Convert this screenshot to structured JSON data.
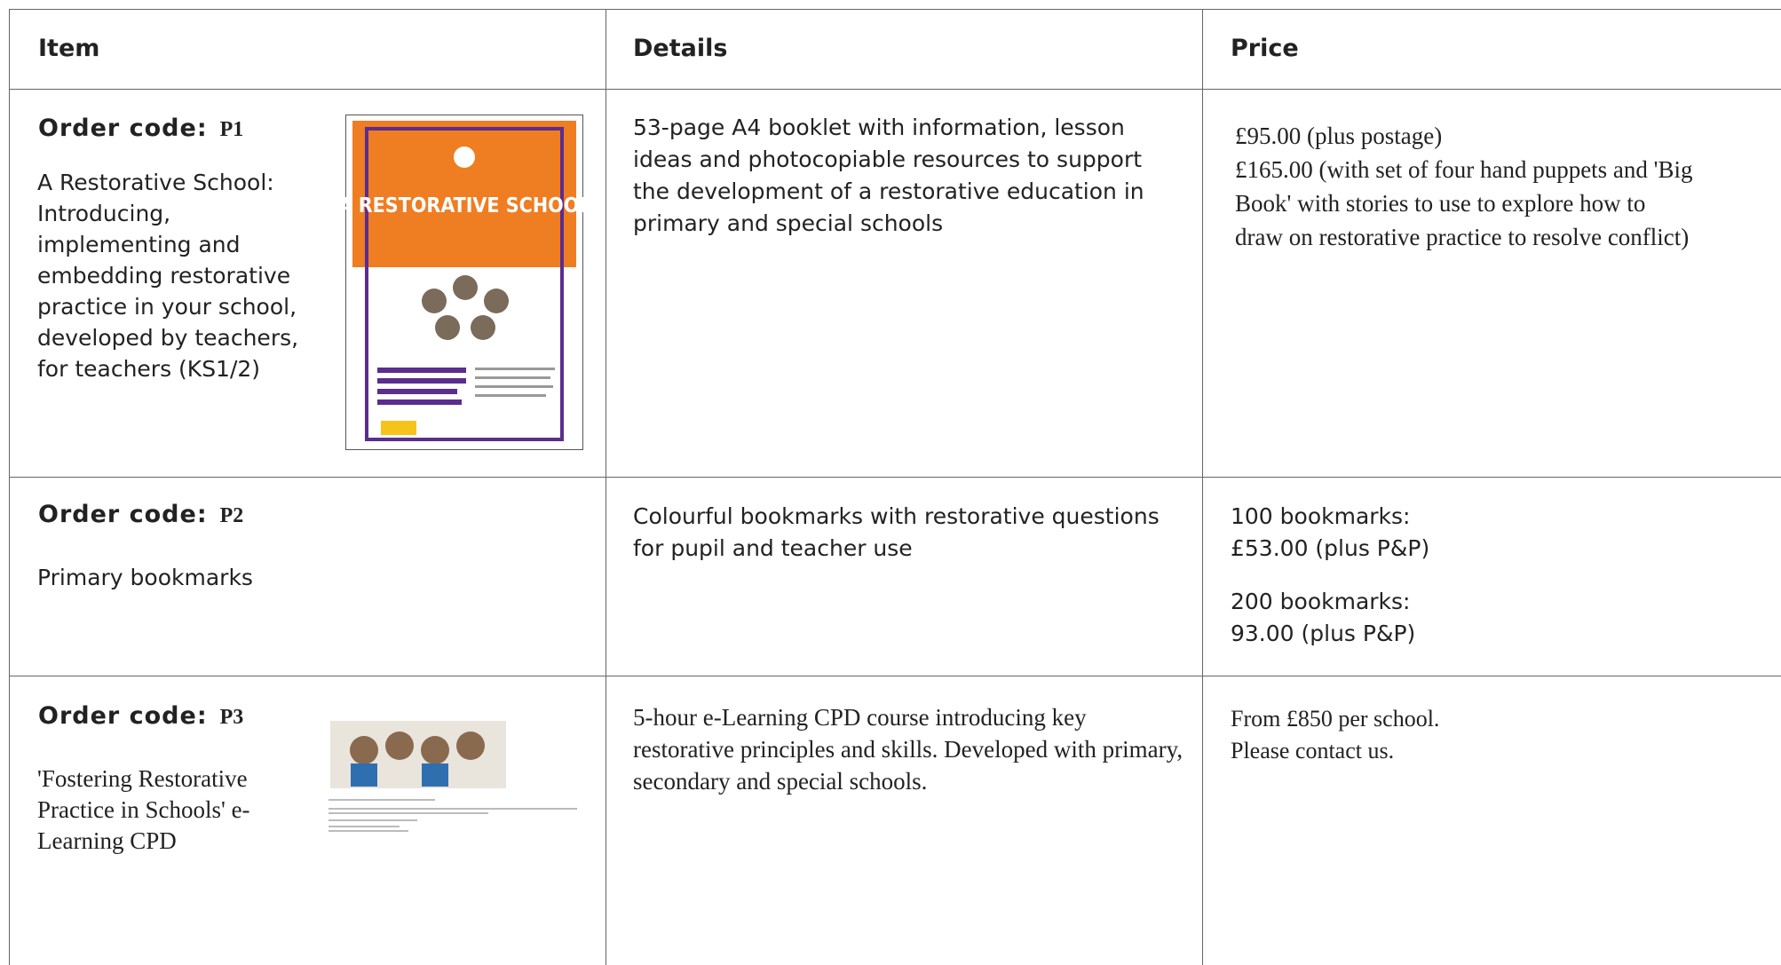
{
  "table": {
    "headers": [
      "Item",
      "Details",
      "Price"
    ],
    "rows": [
      {
        "order_label": "Order code:",
        "code": "P1",
        "item": "A Restorative School: Introducing, implementing and embedding restorative practice in your school, developed by teachers, for teachers (KS1/2)",
        "cover_title": "A RESTORATIVE SCHOOL",
        "details": "53-page A4 booklet with information, lesson ideas and photocopiable resources to support the development of a restorative education in primary and special schools",
        "price": [
          "£95.00 (plus postage)",
          "£165.00 (with set of four hand puppets and 'Big Book' with stories to use to explore how to draw on restorative practice to resolve conflict)"
        ]
      },
      {
        "order_label": "Order code:",
        "code": "P2",
        "item": "Primary bookmarks",
        "details": "Colourful bookmarks with restorative questions for pupil and teacher use",
        "price": [
          "100 bookmarks:",
          "£53.00 (plus P&P)",
          "200 bookmarks:",
          "93.00 (plus P&P)"
        ]
      },
      {
        "order_label": "Order code:",
        "code": "P3",
        "item": "'Fostering Restorative Practice in Schools' e-Learning CPD",
        "details": "5-hour e-Learning CPD course introducing key restorative principles and skills.  Developed with primary, secondary and special schools.",
        "price": [
          "From £850 per school.",
          "Please contact us."
        ]
      }
    ]
  }
}
